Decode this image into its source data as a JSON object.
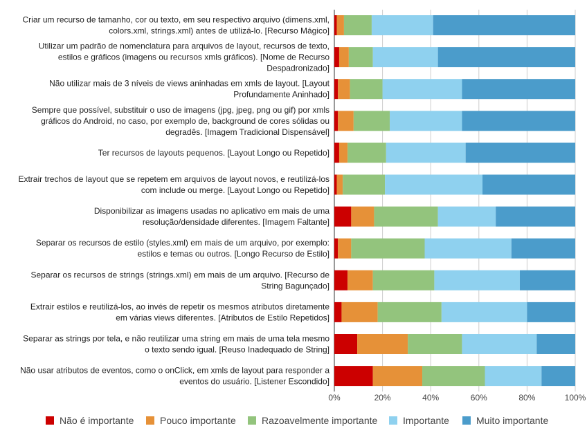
{
  "chart_data": {
    "type": "bar",
    "orientation": "horizontal",
    "stacked": "percent",
    "categories": [
      [
        "Criar um recurso de tamanho, cor ou texto, em seu respectivo arquivo (dimens.xml,",
        "colors.xml, strings.xml) antes de utilizá-lo. [Recurso Mágico]"
      ],
      [
        "Utilizar um padrão de nomenclatura para arquivos de layout, recursos de texto,",
        "estilos e gráficos (imagens ou recursos xmls gráficos). [Nome de Recurso",
        "Despadronizado]"
      ],
      [
        "Não utilizar mais de 3 níveis de views aninhadas em xmls de layout. [Layout",
        "Profundamente Aninhado]"
      ],
      [
        "Sempre que possível, substituir o uso de imagens (jpg, jpeg, png ou gif) por xmls",
        "gráficos do Android, no caso, por exemplo de, background de cores sólidas ou",
        "degradês. [Imagem Tradicional Dispensável]"
      ],
      [
        "Ter recursos de layouts pequenos. [Layout Longo ou Repetido]"
      ],
      [
        "Extrair trechos de layout que se repetem em arquivos de layout novos, e reutilizá-los",
        "com include ou merge. [Layout Longo ou Repetido]"
      ],
      [
        "Disponibilizar as imagens usadas no aplicativo em mais de uma",
        "resolução/densidade diferentes. [Imagem Faltante]"
      ],
      [
        "Separar os recursos de estilo (styles.xml) em mais de um arquivo, por exemplo:",
        "estilos e temas ou outros. [Longo Recurso de Estilo]"
      ],
      [
        "Separar os recursos de strings (strings.xml) em mais de um arquivo. [Recurso de",
        "String Bagunçado]"
      ],
      [
        "Extrair estilos e reutilizá-los, ao invés de repetir os mesmos atributos diretamente",
        "em várias views diferentes. [Atributos de Estilo Repetidos]"
      ],
      [
        "Separar as strings por tela, e não reutilizar uma string em mais de uma tela mesmo",
        "o texto sendo igual. [Reuso Inadequado de String]"
      ],
      [
        "Não usar atributos de eventos, como o onClick, em xmls de layout para responder a",
        "eventos do usuário. [Listener Escondido]"
      ]
    ],
    "series": [
      {
        "name": "Não é importante",
        "color": "#cc0000",
        "values": [
          1.0,
          2.0,
          1.5,
          1.5,
          2.0,
          1.0,
          7.0,
          1.5,
          5.5,
          3.0,
          9.5,
          16.0
        ]
      },
      {
        "name": "Pouco importante",
        "color": "#e69138",
        "values": [
          3.0,
          4.0,
          5.0,
          6.5,
          3.5,
          2.5,
          9.5,
          5.5,
          10.5,
          15.0,
          21.0,
          20.5
        ]
      },
      {
        "name": "Razoavelmente importante",
        "color": "#93c47d",
        "values": [
          11.5,
          10.0,
          13.5,
          15.0,
          16.0,
          17.5,
          26.5,
          30.5,
          25.5,
          26.5,
          22.5,
          26.0
        ]
      },
      {
        "name": "Importante",
        "color": "#8fd1ef",
        "values": [
          25.5,
          27.0,
          33.0,
          30.0,
          33.0,
          40.5,
          24.0,
          36.0,
          35.5,
          35.5,
          31.0,
          23.5
        ]
      },
      {
        "name": "Muito importante",
        "color": "#4b9ccb",
        "values": [
          59.0,
          57.0,
          47.0,
          47.0,
          45.5,
          38.5,
          33.0,
          26.5,
          23.0,
          20.0,
          16.0,
          14.0
        ]
      }
    ],
    "xlim": [
      0,
      100
    ],
    "x_ticks": [
      "0%",
      "20%",
      "40%",
      "60%",
      "80%",
      "100%"
    ],
    "grid": true,
    "legend_position": "bottom"
  }
}
